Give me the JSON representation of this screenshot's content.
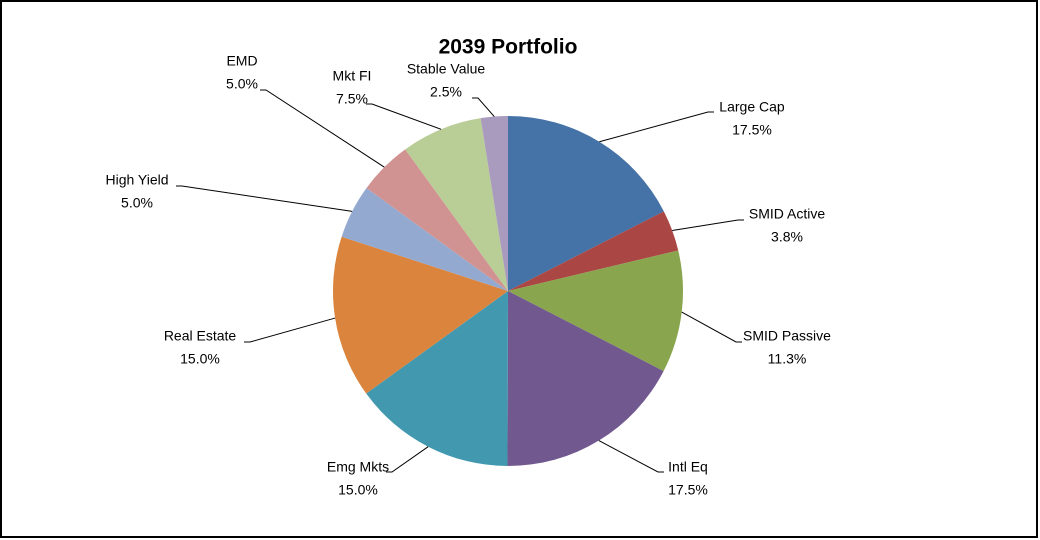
{
  "chart_data": {
    "type": "pie",
    "title": "2039 Portfolio",
    "categories": [
      "Large Cap",
      "SMID Active",
      "SMID Passive",
      "Intl Eq",
      "Emg Mkts",
      "Real Estate",
      "High Yield",
      "EMD",
      "Mkt FI",
      "Stable Value"
    ],
    "values": [
      17.5,
      3.8,
      11.3,
      17.5,
      15.0,
      15.0,
      5.0,
      5.0,
      7.5,
      2.5
    ],
    "value_labels": [
      "17.5%",
      "3.8%",
      "11.3%",
      "17.5%",
      "15.0%",
      "15.0%",
      "5.0%",
      "5.0%",
      "7.5%",
      "2.5%"
    ],
    "colors": [
      "#4572a7",
      "#aa4643",
      "#89a54e",
      "#71588f",
      "#4198af",
      "#db843d",
      "#93a9cf",
      "#d19392",
      "#b9cd96",
      "#a99bbd"
    ]
  }
}
